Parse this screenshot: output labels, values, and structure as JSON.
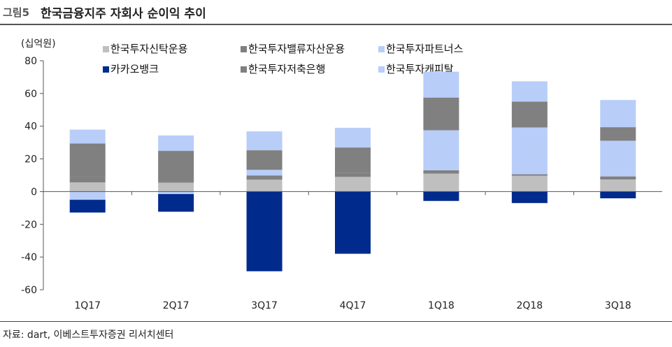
{
  "figure": {
    "label": "그림5",
    "title": "한국금융지주 자회사 순이익 추이",
    "source": "자료: dart, 이베스트투자증권 리서치센터"
  },
  "chart_data": {
    "type": "bar",
    "stacked": true,
    "title": "한국금융지주 자회사 순이익 추이",
    "ylabel": "(십억원)",
    "xlabel": "",
    "ylim": [
      -60,
      80
    ],
    "yticks": [
      -60,
      -40,
      -20,
      0,
      20,
      40,
      60,
      80
    ],
    "grid": false,
    "legend_position": "top",
    "categories": [
      "1Q17",
      "2Q17",
      "3Q17",
      "4Q17",
      "1Q18",
      "2Q18",
      "3Q18"
    ],
    "series": [
      {
        "name": "한국투자신탁운용",
        "color": "#bfbfbf",
        "values": [
          5.6,
          5.4,
          7.3,
          9.0,
          11.0,
          9.7,
          7.4
        ]
      },
      {
        "name": "한국투자밸류자산운용",
        "color": "#808080",
        "values": [
          3.3,
          0.5,
          2.6,
          2.6,
          2.0,
          0.9,
          1.9
        ]
      },
      {
        "name": "한국투자파트너스",
        "color": "#b8cdf8",
        "values": [
          -5.0,
          -1.5,
          3.4,
          0.0,
          24.5,
          28.6,
          21.8
        ]
      },
      {
        "name": "카카오뱅크",
        "color": "#002b8c",
        "values": [
          -7.8,
          -10.8,
          -48.7,
          -38.0,
          -5.7,
          -7.0,
          -4.1
        ]
      },
      {
        "name": "한국투자저축은행",
        "color": "#808080",
        "values": [
          20.5,
          19.0,
          12.0,
          15.4,
          20.0,
          15.8,
          8.3
        ]
      },
      {
        "name": "한국투자캐피탈",
        "color": "#b8cdf8",
        "values": [
          8.5,
          9.4,
          11.5,
          12.0,
          15.8,
          12.4,
          16.6
        ]
      }
    ]
  }
}
